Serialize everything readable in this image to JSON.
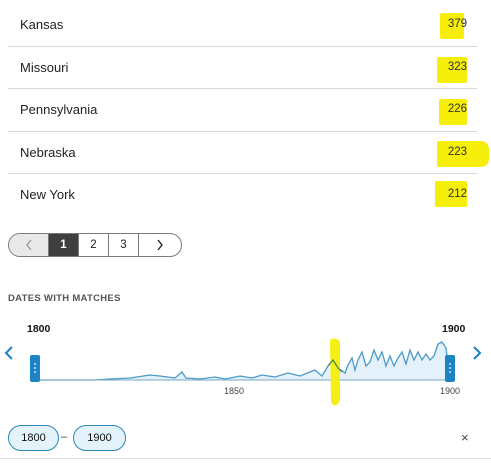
{
  "results": [
    {
      "name": "Kansas",
      "count": "379"
    },
    {
      "name": "Missouri",
      "count": "323"
    },
    {
      "name": "Pennsylvania",
      "count": "226"
    },
    {
      "name": "Nebraska",
      "count": "223"
    },
    {
      "name": "New York",
      "count": "212"
    }
  ],
  "pagination": {
    "prev_icon": "chevron-left-icon",
    "pages": [
      "1",
      "2",
      "3"
    ],
    "current": "1",
    "next_icon": "chevron-right-icon"
  },
  "dates": {
    "section_title": "DATES WITH MATCHES",
    "range_start_label": "1800",
    "range_end_label": "1900",
    "axis_ticks": [
      "1850",
      "1900"
    ],
    "filter_from": "1800",
    "filter_sep": "–",
    "filter_to": "1900",
    "clear_icon": "close-icon",
    "clear_glyph": "×"
  },
  "colors": {
    "highlight": "#f5ee0a",
    "accent": "#2c88b9",
    "sparkline": "#4b9bc8",
    "sparkline_fill": "#e4f1fa",
    "current_page_bg": "#3f3f3f"
  }
}
